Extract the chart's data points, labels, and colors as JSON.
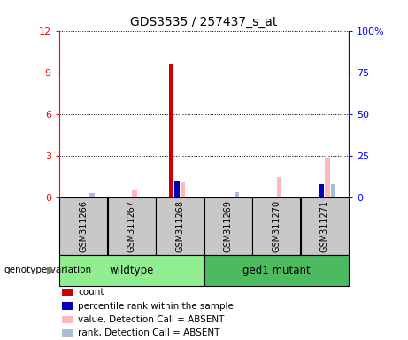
{
  "title": "GDS3535 / 257437_s_at",
  "samples": [
    "GSM311266",
    "GSM311267",
    "GSM311268",
    "GSM311269",
    "GSM311270",
    "GSM311271"
  ],
  "groups": [
    {
      "name": "wildtype",
      "samples_idx": [
        0,
        1,
        2
      ],
      "color": "#90EE90"
    },
    {
      "name": "ged1 mutant",
      "samples_idx": [
        3,
        4,
        5
      ],
      "color": "#4CBB60"
    }
  ],
  "count_values": [
    0.0,
    0.0,
    9.6,
    0.0,
    0.0,
    0.0
  ],
  "percentile_rank_values": [
    0.0,
    0.0,
    10.0,
    0.0,
    0.0,
    8.0
  ],
  "value_absent": [
    0.0,
    4.0,
    9.0,
    0.0,
    12.0,
    24.0
  ],
  "rank_absent": [
    2.5,
    0.0,
    0.0,
    3.0,
    0.0,
    8.0
  ],
  "ylim_left": [
    0,
    12
  ],
  "ylim_right": [
    0,
    100
  ],
  "yticks_left": [
    0,
    3,
    6,
    9,
    12
  ],
  "ytick_labels_left": [
    "0",
    "3",
    "6",
    "9",
    "12"
  ],
  "yticks_right": [
    0,
    25,
    50,
    75,
    100
  ],
  "ytick_labels_right": [
    "0",
    "25",
    "50",
    "75",
    "100%"
  ],
  "bar_width": 0.12,
  "count_color": "#CC0000",
  "percentile_color": "#0000BB",
  "value_absent_color": "#FFB6C1",
  "rank_absent_color": "#AABBD4",
  "sample_box_color": "#C8C8C8",
  "group_label": "genotype/variation",
  "legend_items": [
    {
      "color": "#CC0000",
      "label": "count"
    },
    {
      "color": "#0000BB",
      "label": "percentile rank within the sample"
    },
    {
      "color": "#FFB6C1",
      "label": "value, Detection Call = ABSENT"
    },
    {
      "color": "#AABBD4",
      "label": "rank, Detection Call = ABSENT"
    }
  ]
}
